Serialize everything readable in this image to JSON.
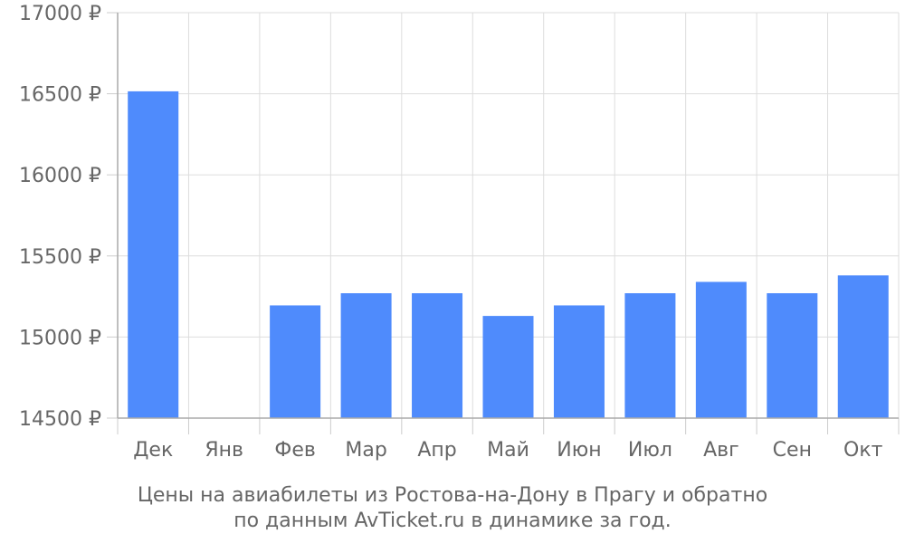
{
  "chart_data": {
    "type": "bar",
    "categories": [
      "Дек",
      "Янв",
      "Фев",
      "Мар",
      "Апр",
      "Май",
      "Июн",
      "Июл",
      "Авг",
      "Сен",
      "Окт"
    ],
    "values": [
      16515,
      null,
      15195,
      15270,
      15270,
      15130,
      15195,
      15270,
      15340,
      15270,
      15380
    ],
    "yticks": [
      "17000 ₽",
      "16500 ₽",
      "16000 ₽",
      "15500 ₽",
      "15000 ₽",
      "14500 ₽"
    ],
    "ylim": [
      14500,
      17000
    ],
    "grid": true,
    "bar_color": "#4f8bfc",
    "caption_line1": "Цены на авиабилеты из Ростова-на-Дону в Прагу и обратно",
    "caption_line2": "по данным AvTicket.ru в динамике за год."
  }
}
